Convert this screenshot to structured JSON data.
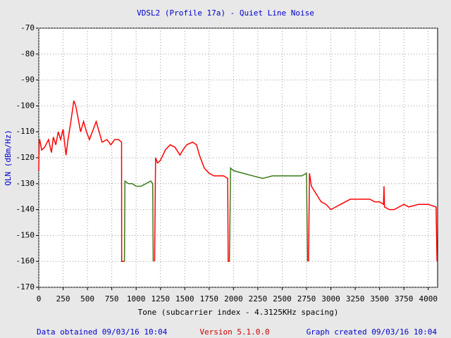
{
  "chart_data": {
    "type": "line",
    "title": "VDSL2 (Profile 17a) - Quiet Line Noise",
    "xlabel": "Tone (subcarrier index - 4.3125KHz spacing)",
    "ylabel": "QLN (dBm/Hz)",
    "xlim": [
      0,
      4096
    ],
    "ylim": [
      -170,
      -70
    ],
    "xticks": [
      0,
      250,
      500,
      750,
      1000,
      1250,
      1500,
      1750,
      2000,
      2250,
      2500,
      2750,
      3000,
      3250,
      3500,
      3750,
      4000
    ],
    "yticks": [
      -70,
      -80,
      -90,
      -100,
      -110,
      -120,
      -130,
      -140,
      -150,
      -160,
      -170
    ],
    "grid": true,
    "series": [
      {
        "color": "#ff0000",
        "x": [
          0,
          5,
          10,
          30,
          60,
          100,
          130,
          150,
          175,
          200,
          225,
          250,
          280,
          300,
          330,
          360,
          380,
          400,
          430,
          460,
          490,
          520,
          560,
          590,
          620,
          650,
          700,
          740,
          780,
          820,
          850,
          852,
          880
        ],
        "values": [
          -125,
          -113,
          -113,
          -117,
          -116,
          -113,
          -118,
          -112,
          -115,
          -110,
          -113,
          -109,
          -119,
          -113,
          -106,
          -98,
          -100,
          -104,
          -110,
          -106,
          -110,
          -113,
          -109,
          -106,
          -110,
          -114,
          -113,
          -115,
          -113,
          -113,
          -114,
          -160,
          -160
        ]
      },
      {
        "color": "#3a7a1a",
        "x": [
          880,
          885,
          920,
          960,
          1000,
          1050,
          1100,
          1150,
          1170,
          1175
        ],
        "values": [
          -160,
          -129,
          -130,
          -130,
          -131,
          -131,
          -130,
          -129,
          -130,
          -160
        ]
      },
      {
        "color": "#ff0000",
        "x": [
          1190,
          1200,
          1220,
          1250,
          1300,
          1350,
          1400,
          1450,
          1480,
          1520,
          1580,
          1620,
          1650,
          1700,
          1750,
          1800,
          1850,
          1900,
          1940,
          1945,
          1958
        ],
        "values": [
          -160,
          -120,
          -122,
          -121,
          -117,
          -115,
          -116,
          -119,
          -117,
          -115,
          -114,
          -115,
          -119,
          -124,
          -126,
          -127,
          -127,
          -127,
          -128,
          -160,
          -160
        ]
      },
      {
        "color": "#3a7a1a",
        "x": [
          1958,
          1970,
          2000,
          2100,
          2200,
          2300,
          2400,
          2500,
          2600,
          2700,
          2750,
          2760
        ],
        "values": [
          -160,
          -124,
          -125,
          -126,
          -127,
          -128,
          -127,
          -127,
          -127,
          -127,
          -126,
          -160
        ]
      },
      {
        "color": "#ff0000",
        "x": [
          2770,
          2780,
          2800,
          2850,
          2900,
          2950,
          3000,
          3050,
          3100,
          3200,
          3300,
          3400,
          3450,
          3500,
          3540,
          3545,
          3550,
          3600,
          3650,
          3700,
          3750,
          3800,
          3900,
          4000,
          4080,
          4090
        ],
        "values": [
          -160,
          -126,
          -131,
          -134,
          -137,
          -138,
          -140,
          -139,
          -138,
          -136,
          -136,
          -136,
          -137,
          -137,
          -138,
          -131,
          -139,
          -140,
          -140,
          -139,
          -138,
          -139,
          -138,
          -138,
          -139,
          -160
        ]
      }
    ]
  },
  "footer": {
    "left": "Data obtained 09/03/16 10:04",
    "center": "Version 5.1.0.0",
    "right": "Graph created 09/03/16 10:04"
  }
}
